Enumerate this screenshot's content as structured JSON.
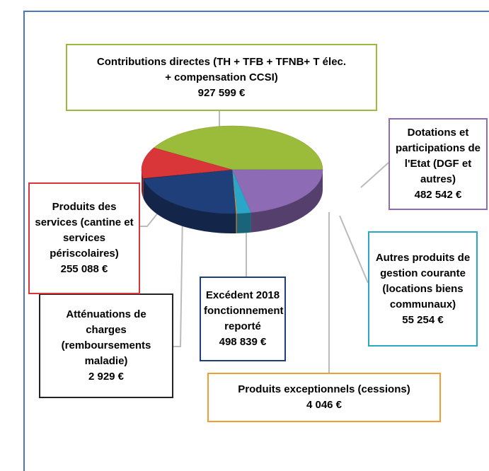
{
  "chart_data": {
    "type": "pie3d",
    "categories": [
      "Contributions directes (TH + TFB + TFNB+ T élec. + compensation CCSI)",
      "Dotations et participations de l'Etat (DGF et autres)",
      "Autres produits de gestion courante (locations biens communaux)",
      "Produits exceptionnels (cessions)",
      "Excédent 2018 fonctionnement reporté",
      "Atténuations de charges (remboursements maladie)",
      "Produits des services (cantine et services périscolaires)"
    ],
    "values": [
      927599,
      482542,
      55254,
      4046,
      498839,
      2929,
      255088
    ],
    "value_labels": [
      "927 599 €",
      "482 542 €",
      "55 254 €",
      "4 046 €",
      "498 839 €",
      "2 929 €",
      "255 088 €"
    ],
    "colors": [
      "#9bbb3a",
      "#8e6bb5",
      "#2aa6c9",
      "#f39c33",
      "#1f3f7a",
      "#222222",
      "#d9363a"
    ]
  }
}
